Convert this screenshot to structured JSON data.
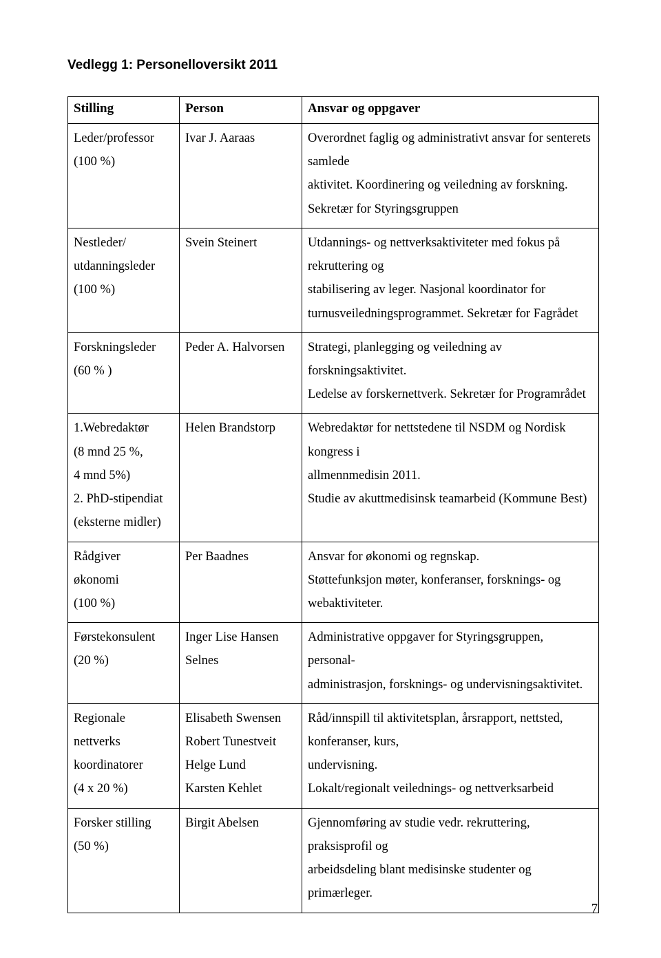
{
  "title": "Vedlegg 1: Personelloversikt 2011",
  "headers": {
    "stilling": "Stilling",
    "person": "Person",
    "ansvar": "Ansvar og oppgaver"
  },
  "rows": [
    {
      "stilling_l1": "Leder/professor",
      "stilling_l2": "(100 %)",
      "person": "Ivar J. Aaraas",
      "ansvar_l1": "Overordnet faglig og administrativt ansvar for senterets samlede",
      "ansvar_l2": "aktivitet. Koordinering og veiledning av forskning.",
      "ansvar_l3": "Sekretær for Styringsgruppen"
    },
    {
      "stilling_l1": "Nestleder/",
      "stilling_l2": "utdanningsleder",
      "stilling_l3": "(100 %)",
      "person": "Svein Steinert",
      "ansvar_l1": "Utdannings- og nettverksaktiviteter med fokus på rekruttering og",
      "ansvar_l2": "stabilisering av leger. Nasjonal koordinator for",
      "ansvar_l3": "turnusveiledningsprogrammet. Sekretær for Fagrådet"
    },
    {
      "stilling_l1": "Forskningsleder",
      "stilling_l2": "(60 % )",
      "person": "Peder A. Halvorsen",
      "ansvar_l1": "Strategi, planlegging og veiledning av forskningsaktivitet.",
      "ansvar_l2": "Ledelse av forskernettverk. Sekretær for Programrådet"
    },
    {
      "stilling_l1": "1.Webredaktør",
      "stilling_l2": "(8 mnd 25 %,",
      "stilling_l3": "4 mnd 5%)",
      "stilling_l4": "2. PhD-stipendiat",
      "stilling_l5": "(eksterne midler)",
      "person": "Helen Brandstorp",
      "ansvar_l1": "Webredaktør for nettstedene til NSDM og Nordisk kongress i",
      "ansvar_l2": "allmennmedisin 2011.",
      "ansvar_l3": "Studie av akuttmedisinsk teamarbeid (Kommune Best)"
    },
    {
      "stilling_l1": "Rådgiver",
      "stilling_l2": "økonomi",
      "stilling_l3": "(100 %)",
      "person": "Per Baadnes",
      "ansvar_l1": "Ansvar for økonomi og regnskap.",
      "ansvar_l2": "Støttefunksjon møter, konferanser, forsknings- og webaktiviteter."
    },
    {
      "stilling_l1": "Førstekonsulent",
      "stilling_l2": "(20 %)",
      "person_l1": "Inger Lise Hansen",
      "person_l2": "Selnes",
      "ansvar_l1": "Administrative oppgaver for Styringsgruppen, personal-",
      "ansvar_l2": "administrasjon, forsknings- og undervisningsaktivitet."
    },
    {
      "stilling_l1": "Regionale",
      "stilling_l2": "nettverks",
      "stilling_l3": "koordinatorer",
      "stilling_l4": "(4 x 20 %)",
      "person_l1": "Elisabeth Swensen",
      "person_l2": "Robert Tunestveit",
      "person_l3": "Helge Lund",
      "person_l4": "Karsten Kehlet",
      "ansvar_l1": "Råd/innspill til aktivitetsplan, årsrapport, nettsted, konferanser, kurs,",
      "ansvar_l2": "undervisning.",
      "ansvar_l3": "Lokalt/regionalt veilednings- og nettverksarbeid"
    },
    {
      "stilling_l1": "Forsker stilling",
      "stilling_l2": "(50 %)",
      "person": "Birgit Abelsen",
      "ansvar_l1": "Gjennomføring av studie vedr. rekruttering, praksisprofil og",
      "ansvar_l2": "arbeidsdeling blant medisinske studenter og primærleger."
    }
  ],
  "pageNumber": "7"
}
